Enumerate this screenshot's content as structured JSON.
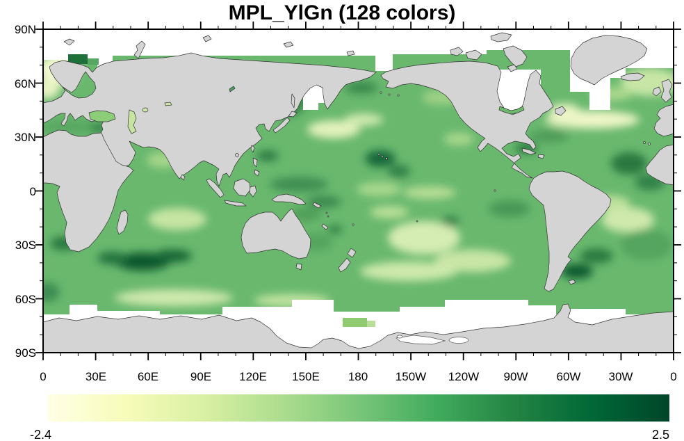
{
  "title": "MPL_YlGn (128 colors)",
  "axes": {
    "lat_labels": [
      "90N",
      "60N",
      "30N",
      "0",
      "30S",
      "60S",
      "90S"
    ],
    "lon_labels": [
      "0",
      "30E",
      "60E",
      "90E",
      "120E",
      "150E",
      "180",
      "150W",
      "120W",
      "90W",
      "60W",
      "30W",
      "0"
    ]
  },
  "colorbar": {
    "min_label": "-2.4",
    "max_label": "2.5",
    "n_colors": 128,
    "stops": [
      "#ffffe5",
      "#f7fcb9",
      "#d9f0a3",
      "#addd8e",
      "#78c679",
      "#41ab5d",
      "#238443",
      "#006837",
      "#004529"
    ]
  },
  "colors": {
    "land": "#d4d4d4",
    "coastline": "#333333",
    "ocean_base": "#69b86e",
    "missing": "#ffffff",
    "frame": "#000000"
  },
  "chart_data": {
    "type": "heatmap",
    "title": "MPL_YlGn (128 colors)",
    "description": "Global filled-contour field over the ocean on a Pacific-centered equirectangular world map, rendered with the MPL_YlGn colormap (128 colors). Continents are gray with black coastlines; the Arctic, marginal seas (Sea of Okhotsk, Hudson Bay, Labrador Sea) and a band around Antarctica are white (missing data).",
    "colormap": "MPL_YlGn",
    "n_colors": 128,
    "value_range": [
      -2.4,
      2.5
    ],
    "x_axis": {
      "tick_labels": [
        "0",
        "30E",
        "60E",
        "90E",
        "120E",
        "150E",
        "180",
        "150W",
        "120W",
        "90W",
        "60W",
        "30W",
        "0"
      ],
      "major_tick_interval_deg": 30,
      "minor_tick_interval_deg": 10,
      "range_deg_east_from_0": [
        0,
        360
      ]
    },
    "y_axis": {
      "tick_labels": [
        "90N",
        "60N",
        "30N",
        "0",
        "30S",
        "60S",
        "90S"
      ],
      "major_tick_interval_deg": 30,
      "minor_tick_interval_deg": 10,
      "range": [
        "90S",
        "90N"
      ]
    },
    "legend_position": "bottom horizontal colorbar",
    "grid": false,
    "notable_features": [
      {
        "region": "South Indian Ocean ~40S, 60-100E",
        "value": "darkest green, near maximum ~2.5"
      },
      {
        "region": "Argentine Basin ~45S, 50W",
        "value": "dark green"
      },
      {
        "region": "North-east of Hawaii ~25N, 150W",
        "value": "dark green"
      },
      {
        "region": "North Atlantic 35-45N",
        "value": "pale yellow, near minimum"
      },
      {
        "region": "Norwegian Sea / NW Europe",
        "value": "pale yellow"
      },
      {
        "region": "Central North Pacific ~35N",
        "value": "pale yellow patch"
      },
      {
        "region": "Southern Ocean 55-62S",
        "value": "light green band"
      },
      {
        "region": "South-east Pacific ~25S, 120W",
        "value": "light green"
      }
    ]
  }
}
